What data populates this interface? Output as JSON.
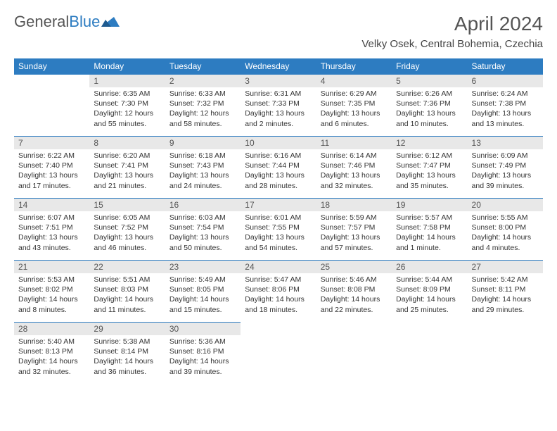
{
  "logo": {
    "text_gray": "General",
    "text_blue": "Blue"
  },
  "title": "April 2024",
  "location": "Velky Osek, Central Bohemia, Czechia",
  "colors": {
    "header_bg": "#2d7cc1",
    "header_fg": "#ffffff",
    "daynum_bg": "#e8e8e8",
    "border": "#2d7cc1",
    "text": "#333333"
  },
  "weekdays": [
    "Sunday",
    "Monday",
    "Tuesday",
    "Wednesday",
    "Thursday",
    "Friday",
    "Saturday"
  ],
  "weeks": [
    [
      {
        "day": "",
        "sunrise": "",
        "sunset": "",
        "daylight": ""
      },
      {
        "day": "1",
        "sunrise": "Sunrise: 6:35 AM",
        "sunset": "Sunset: 7:30 PM",
        "daylight": "Daylight: 12 hours and 55 minutes."
      },
      {
        "day": "2",
        "sunrise": "Sunrise: 6:33 AM",
        "sunset": "Sunset: 7:32 PM",
        "daylight": "Daylight: 12 hours and 58 minutes."
      },
      {
        "day": "3",
        "sunrise": "Sunrise: 6:31 AM",
        "sunset": "Sunset: 7:33 PM",
        "daylight": "Daylight: 13 hours and 2 minutes."
      },
      {
        "day": "4",
        "sunrise": "Sunrise: 6:29 AM",
        "sunset": "Sunset: 7:35 PM",
        "daylight": "Daylight: 13 hours and 6 minutes."
      },
      {
        "day": "5",
        "sunrise": "Sunrise: 6:26 AM",
        "sunset": "Sunset: 7:36 PM",
        "daylight": "Daylight: 13 hours and 10 minutes."
      },
      {
        "day": "6",
        "sunrise": "Sunrise: 6:24 AM",
        "sunset": "Sunset: 7:38 PM",
        "daylight": "Daylight: 13 hours and 13 minutes."
      }
    ],
    [
      {
        "day": "7",
        "sunrise": "Sunrise: 6:22 AM",
        "sunset": "Sunset: 7:40 PM",
        "daylight": "Daylight: 13 hours and 17 minutes."
      },
      {
        "day": "8",
        "sunrise": "Sunrise: 6:20 AM",
        "sunset": "Sunset: 7:41 PM",
        "daylight": "Daylight: 13 hours and 21 minutes."
      },
      {
        "day": "9",
        "sunrise": "Sunrise: 6:18 AM",
        "sunset": "Sunset: 7:43 PM",
        "daylight": "Daylight: 13 hours and 24 minutes."
      },
      {
        "day": "10",
        "sunrise": "Sunrise: 6:16 AM",
        "sunset": "Sunset: 7:44 PM",
        "daylight": "Daylight: 13 hours and 28 minutes."
      },
      {
        "day": "11",
        "sunrise": "Sunrise: 6:14 AM",
        "sunset": "Sunset: 7:46 PM",
        "daylight": "Daylight: 13 hours and 32 minutes."
      },
      {
        "day": "12",
        "sunrise": "Sunrise: 6:12 AM",
        "sunset": "Sunset: 7:47 PM",
        "daylight": "Daylight: 13 hours and 35 minutes."
      },
      {
        "day": "13",
        "sunrise": "Sunrise: 6:09 AM",
        "sunset": "Sunset: 7:49 PM",
        "daylight": "Daylight: 13 hours and 39 minutes."
      }
    ],
    [
      {
        "day": "14",
        "sunrise": "Sunrise: 6:07 AM",
        "sunset": "Sunset: 7:51 PM",
        "daylight": "Daylight: 13 hours and 43 minutes."
      },
      {
        "day": "15",
        "sunrise": "Sunrise: 6:05 AM",
        "sunset": "Sunset: 7:52 PM",
        "daylight": "Daylight: 13 hours and 46 minutes."
      },
      {
        "day": "16",
        "sunrise": "Sunrise: 6:03 AM",
        "sunset": "Sunset: 7:54 PM",
        "daylight": "Daylight: 13 hours and 50 minutes."
      },
      {
        "day": "17",
        "sunrise": "Sunrise: 6:01 AM",
        "sunset": "Sunset: 7:55 PM",
        "daylight": "Daylight: 13 hours and 54 minutes."
      },
      {
        "day": "18",
        "sunrise": "Sunrise: 5:59 AM",
        "sunset": "Sunset: 7:57 PM",
        "daylight": "Daylight: 13 hours and 57 minutes."
      },
      {
        "day": "19",
        "sunrise": "Sunrise: 5:57 AM",
        "sunset": "Sunset: 7:58 PM",
        "daylight": "Daylight: 14 hours and 1 minute."
      },
      {
        "day": "20",
        "sunrise": "Sunrise: 5:55 AM",
        "sunset": "Sunset: 8:00 PM",
        "daylight": "Daylight: 14 hours and 4 minutes."
      }
    ],
    [
      {
        "day": "21",
        "sunrise": "Sunrise: 5:53 AM",
        "sunset": "Sunset: 8:02 PM",
        "daylight": "Daylight: 14 hours and 8 minutes."
      },
      {
        "day": "22",
        "sunrise": "Sunrise: 5:51 AM",
        "sunset": "Sunset: 8:03 PM",
        "daylight": "Daylight: 14 hours and 11 minutes."
      },
      {
        "day": "23",
        "sunrise": "Sunrise: 5:49 AM",
        "sunset": "Sunset: 8:05 PM",
        "daylight": "Daylight: 14 hours and 15 minutes."
      },
      {
        "day": "24",
        "sunrise": "Sunrise: 5:47 AM",
        "sunset": "Sunset: 8:06 PM",
        "daylight": "Daylight: 14 hours and 18 minutes."
      },
      {
        "day": "25",
        "sunrise": "Sunrise: 5:46 AM",
        "sunset": "Sunset: 8:08 PM",
        "daylight": "Daylight: 14 hours and 22 minutes."
      },
      {
        "day": "26",
        "sunrise": "Sunrise: 5:44 AM",
        "sunset": "Sunset: 8:09 PM",
        "daylight": "Daylight: 14 hours and 25 minutes."
      },
      {
        "day": "27",
        "sunrise": "Sunrise: 5:42 AM",
        "sunset": "Sunset: 8:11 PM",
        "daylight": "Daylight: 14 hours and 29 minutes."
      }
    ],
    [
      {
        "day": "28",
        "sunrise": "Sunrise: 5:40 AM",
        "sunset": "Sunset: 8:13 PM",
        "daylight": "Daylight: 14 hours and 32 minutes."
      },
      {
        "day": "29",
        "sunrise": "Sunrise: 5:38 AM",
        "sunset": "Sunset: 8:14 PM",
        "daylight": "Daylight: 14 hours and 36 minutes."
      },
      {
        "day": "30",
        "sunrise": "Sunrise: 5:36 AM",
        "sunset": "Sunset: 8:16 PM",
        "daylight": "Daylight: 14 hours and 39 minutes."
      },
      {
        "day": "",
        "sunrise": "",
        "sunset": "",
        "daylight": ""
      },
      {
        "day": "",
        "sunrise": "",
        "sunset": "",
        "daylight": ""
      },
      {
        "day": "",
        "sunrise": "",
        "sunset": "",
        "daylight": ""
      },
      {
        "day": "",
        "sunrise": "",
        "sunset": "",
        "daylight": ""
      }
    ]
  ]
}
